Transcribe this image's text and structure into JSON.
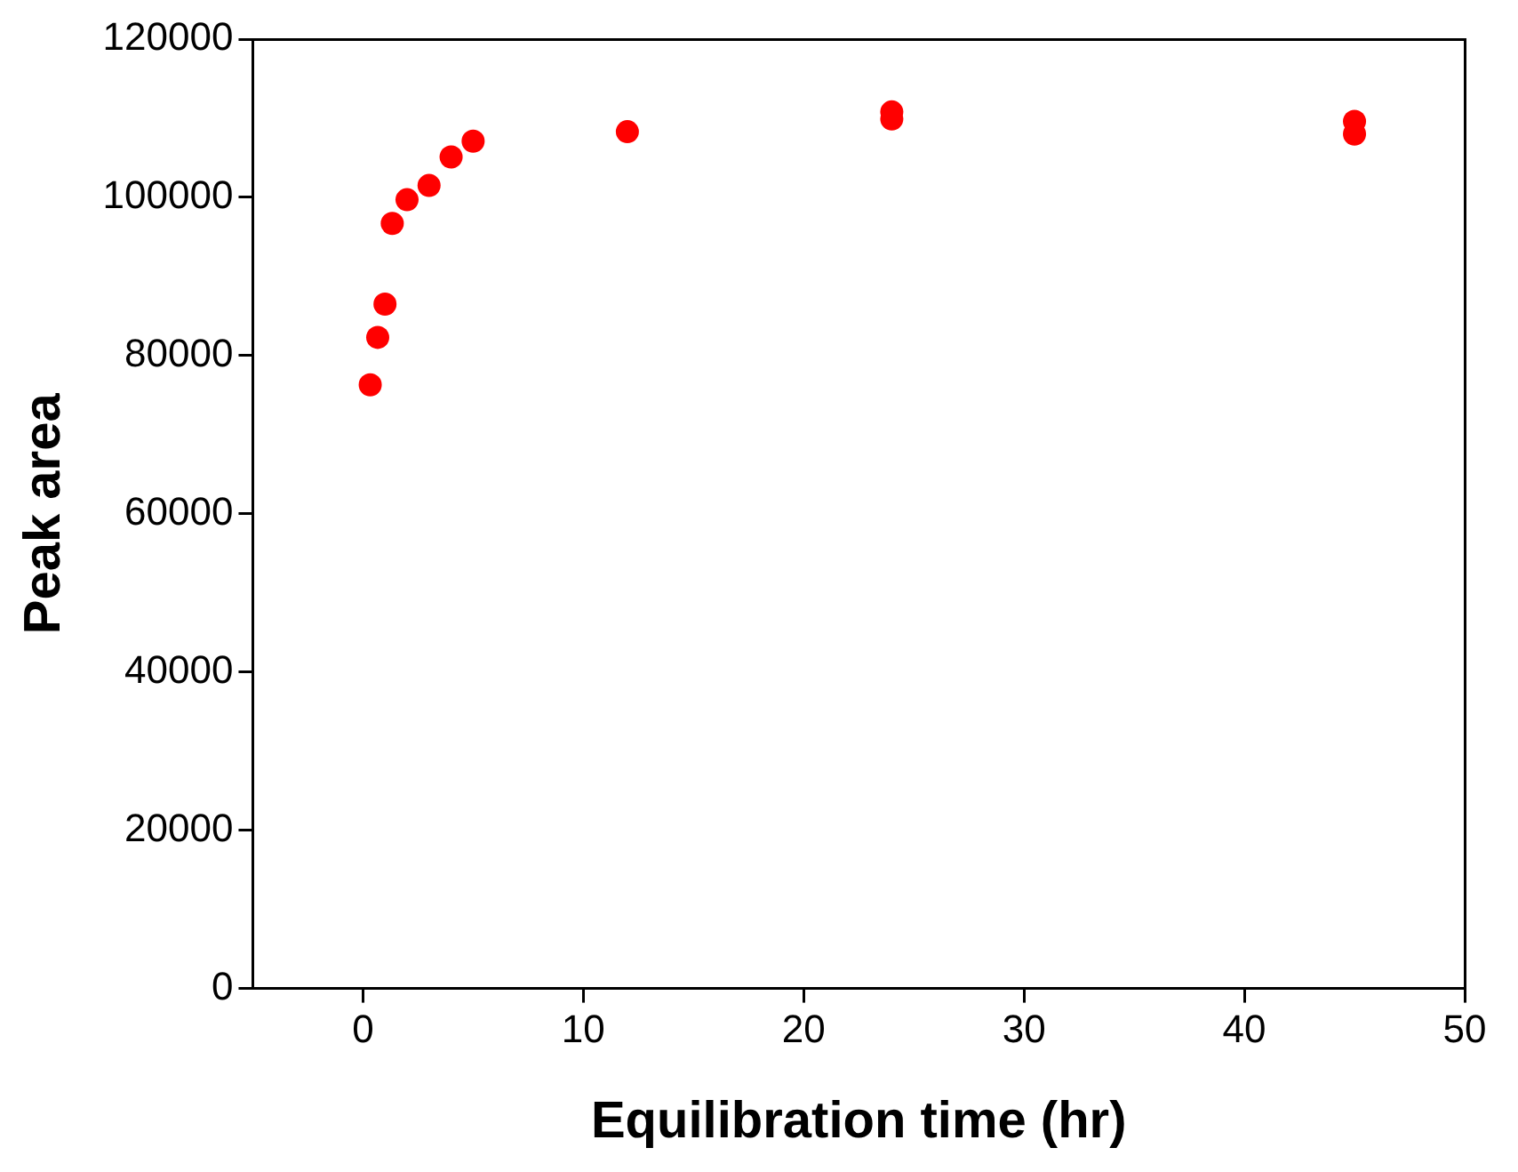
{
  "chart_data": {
    "type": "scatter",
    "xlabel": "Equilibration time (hr)",
    "ylabel": "Peak area",
    "x": [
      0.33,
      0.67,
      1,
      1.33,
      2,
      3,
      4,
      5,
      12,
      24,
      24,
      45,
      45
    ],
    "series": [
      {
        "color": "#ff0000",
        "values": [
          76300,
          82300,
          86500,
          96700,
          99700,
          101500,
          105100,
          107100,
          108300,
          110800,
          109900,
          109600,
          108000
        ]
      }
    ],
    "xlim": [
      -5,
      50
    ],
    "xticks": [
      0,
      10,
      20,
      30,
      40,
      50
    ],
    "ylim": [
      0,
      120000
    ],
    "yticks": [
      0,
      20000,
      40000,
      60000,
      80000,
      100000,
      120000
    ],
    "grid": false,
    "legend": false,
    "marker": "circle"
  }
}
